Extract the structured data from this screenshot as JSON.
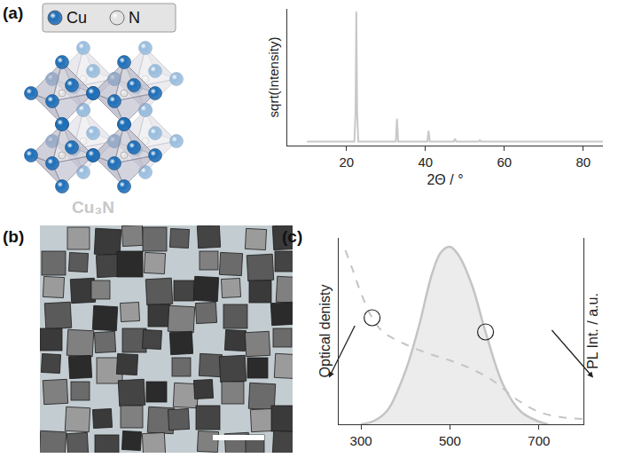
{
  "panels": {
    "a": "(a)",
    "b": "(b)",
    "c": "(c)"
  },
  "structure": {
    "legend": [
      {
        "name": "Cu",
        "color": "#1f6fb8"
      },
      {
        "name": "N",
        "color": "#e2e2e2"
      }
    ],
    "label": "Cu₃N",
    "color": "#c8c8c8"
  },
  "chart_data": [
    {
      "type": "line",
      "x_label": "2Θ / °",
      "y_label": "sqrt(Intensity)",
      "x": [
        10,
        22,
        22.3,
        22.5,
        22.7,
        23,
        32.5,
        32.8,
        33.1,
        40.5,
        40.8,
        41.1,
        47.2,
        47.5,
        47.8,
        53.5,
        53.8,
        54.1,
        85
      ],
      "values": [
        0.03,
        0.03,
        0.25,
        1.0,
        0.25,
        0.03,
        0.03,
        0.2,
        0.03,
        0.03,
        0.11,
        0.03,
        0.03,
        0.05,
        0.03,
        0.03,
        0.04,
        0.03,
        0.03
      ],
      "color": "#c8c8c8",
      "xlim": [
        5,
        85
      ],
      "xticks": [
        20,
        40,
        60,
        80
      ],
      "ylim": [
        0,
        1.02
      ],
      "tick_labels": "x",
      "grid": false
    },
    {
      "type": "line",
      "y_label": "Optical denisty",
      "y2_label": "PL Int. / a.u.",
      "xlim": [
        250,
        800
      ],
      "xticks": [
        300,
        500,
        700
      ],
      "ylim": [
        0,
        1.05
      ],
      "y2lim": [
        0,
        1.05
      ],
      "tick_labels": "x",
      "grid": false,
      "series": [
        {
          "color": "#c4c4c4",
          "line_style": "dashed",
          "x": [
            265,
            280,
            300,
            325,
            350,
            400,
            450,
            500,
            550,
            600,
            650,
            700,
            750,
            800
          ],
          "values": [
            0.98,
            0.88,
            0.74,
            0.6,
            0.52,
            0.45,
            0.4,
            0.36,
            0.31,
            0.24,
            0.14,
            0.07,
            0.04,
            0.03
          ]
        },
        {
          "axis": "y2",
          "color": "#c4c4c4",
          "line_style": "solid",
          "x": [
            300,
            330,
            360,
            400,
            430,
            460,
            480,
            500,
            520,
            550,
            580,
            620,
            660,
            700,
            720
          ],
          "values": [
            0,
            0.02,
            0.08,
            0.3,
            0.55,
            0.85,
            0.97,
            1.0,
            0.95,
            0.78,
            0.52,
            0.22,
            0.07,
            0.015,
            0
          ]
        }
      ]
    }
  ]
}
